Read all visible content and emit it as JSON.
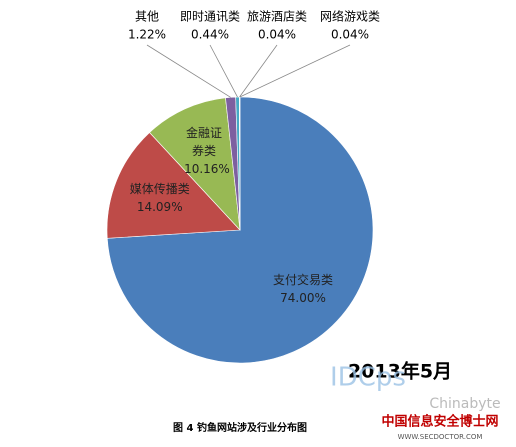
{
  "chart_data": {
    "type": "pie",
    "categories": [
      "支付交易类",
      "媒体传播类",
      "金融证券类",
      "其他",
      "即时通讯类",
      "旅游酒店类",
      "网络游戏类"
    ],
    "values": [
      74.0,
      14.09,
      10.16,
      1.22,
      0.44,
      0.04,
      0.04
    ],
    "value_labels": [
      "74.00%",
      "14.09%",
      "10.16%",
      "1.22%",
      "0.44%",
      "0.04%",
      "0.04%"
    ],
    "colors": [
      "#4a7ebb",
      "#be4b48",
      "#98b954",
      "#7d60a0",
      "#46aac5",
      "#f79646",
      "#2c4d75"
    ],
    "annotation": "2013年5月",
    "caption": "图 4  钓鱼网站涉及行业分布图",
    "watermarks": [
      "IDCps",
      "Chinabyte",
      "中国信息安全博士网",
      "WWW.SECDOCTOR.COM"
    ]
  }
}
